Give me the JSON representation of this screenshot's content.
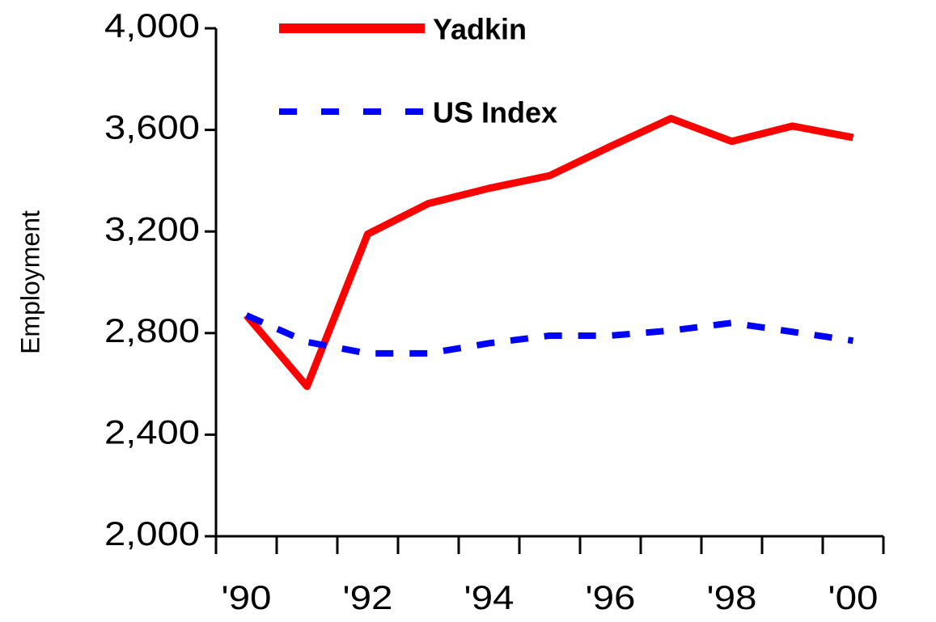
{
  "chart_data": {
    "type": "line",
    "y_label": "Employment",
    "categories": [
      "'90",
      null,
      "'92",
      null,
      "'94",
      null,
      "'96",
      null,
      "'98",
      null,
      "'00"
    ],
    "series": [
      {
        "name": "Yadkin",
        "color": "#ff0000",
        "style": "solid",
        "values": [
          2870,
          2590,
          3190,
          3310,
          3370,
          3420,
          3535,
          3645,
          3555,
          3615,
          3570
        ]
      },
      {
        "name": "US Index",
        "color": "#0000ff",
        "style": "dashed",
        "values": [
          2870,
          2765,
          2720,
          2720,
          2760,
          2790,
          2790,
          2810,
          2840,
          2805,
          2770
        ]
      }
    ],
    "ylim": [
      2000,
      4000
    ],
    "yticks": [
      {
        "value": 2000,
        "label": "2,000"
      },
      {
        "value": 2400,
        "label": "2,400"
      },
      {
        "value": 2800,
        "label": "2,800"
      },
      {
        "value": 3200,
        "label": "3,200"
      },
      {
        "value": 3600,
        "label": "3,600"
      },
      {
        "value": 4000,
        "label": "4,000"
      }
    ],
    "grid": false,
    "legend": "top-left"
  }
}
